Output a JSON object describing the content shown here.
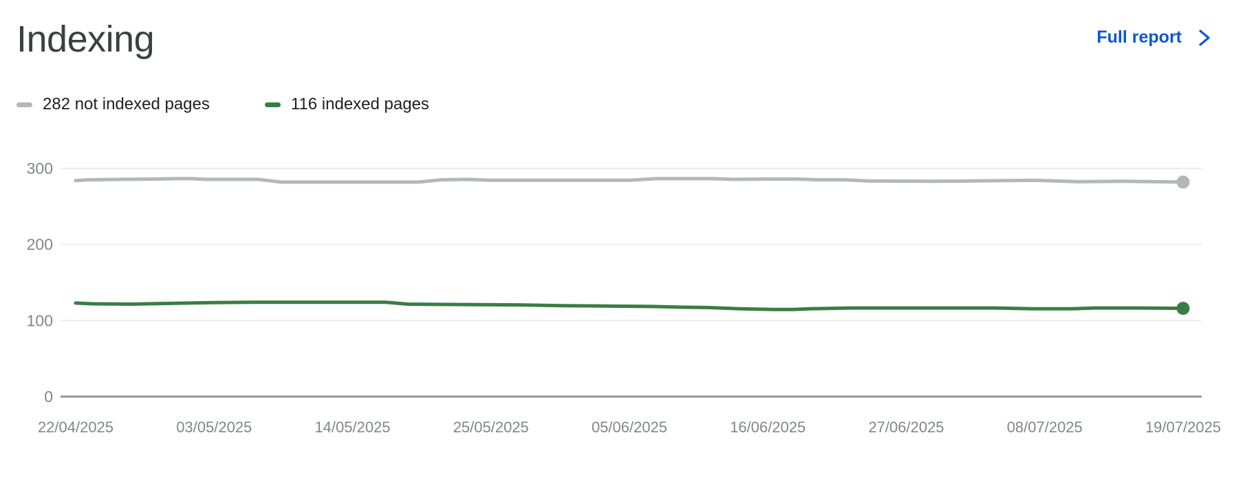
{
  "header": {
    "title": "Indexing",
    "full_report_label": "Full report"
  },
  "icons": {
    "chevron_right": "chevron-right"
  },
  "colors": {
    "accent_blue": "#0b57d0",
    "title_text": "#3c4043",
    "legend_text": "#202124",
    "axis_text": "#80868b",
    "gridline": "#ececec",
    "baseline": "#919396",
    "not_indexed_gray": "#b4b7ba",
    "indexed_green": "#3a7d44"
  },
  "chart_data": {
    "type": "line",
    "title": "Indexing",
    "xlabel": "",
    "ylabel": "",
    "ylim": [
      0,
      300
    ],
    "yticks": [
      0,
      100,
      200,
      300
    ],
    "grid": "horizontal-only",
    "legend_position": "top-left",
    "x_tick_labels": [
      "22/04/2025",
      "03/05/2025",
      "14/05/2025",
      "25/05/2025",
      "05/06/2025",
      "16/06/2025",
      "27/06/2025",
      "08/07/2025",
      "19/07/2025"
    ],
    "x_start_date": "22/04/2025",
    "x_end_date": "19/07/2025",
    "series": [
      {
        "name": "282 not indexed pages",
        "color": "#b4b7ba",
        "current_value": 282,
        "end_dot": true,
        "points": [
          [
            0.0,
            284.0
          ],
          [
            0.012,
            285.0
          ],
          [
            0.04,
            285.5
          ],
          [
            0.07,
            286.0
          ],
          [
            0.09,
            286.5
          ],
          [
            0.105,
            286.5
          ],
          [
            0.118,
            285.5
          ],
          [
            0.165,
            285.5
          ],
          [
            0.185,
            282.0
          ],
          [
            0.31,
            282.0
          ],
          [
            0.33,
            285.0
          ],
          [
            0.355,
            285.5
          ],
          [
            0.375,
            284.5
          ],
          [
            0.5,
            284.5
          ],
          [
            0.525,
            286.5
          ],
          [
            0.575,
            286.5
          ],
          [
            0.595,
            285.5
          ],
          [
            0.625,
            286.0
          ],
          [
            0.65,
            286.0
          ],
          [
            0.67,
            285.0
          ],
          [
            0.695,
            285.0
          ],
          [
            0.715,
            283.5
          ],
          [
            0.775,
            283.0
          ],
          [
            0.81,
            283.5
          ],
          [
            0.84,
            284.0
          ],
          [
            0.865,
            284.5
          ],
          [
            0.885,
            283.5
          ],
          [
            0.905,
            282.5
          ],
          [
            0.945,
            283.0
          ],
          [
            1.0,
            282.0
          ]
        ]
      },
      {
        "name": "116 indexed pages",
        "color": "#3a7d44",
        "current_value": 116,
        "end_dot": true,
        "points": [
          [
            0.0,
            123.0
          ],
          [
            0.015,
            122.0
          ],
          [
            0.05,
            121.5
          ],
          [
            0.085,
            122.5
          ],
          [
            0.125,
            123.5
          ],
          [
            0.16,
            124.0
          ],
          [
            0.28,
            124.0
          ],
          [
            0.3,
            121.5
          ],
          [
            0.35,
            121.0
          ],
          [
            0.4,
            120.5
          ],
          [
            0.44,
            119.5
          ],
          [
            0.48,
            119.0
          ],
          [
            0.52,
            118.5
          ],
          [
            0.55,
            117.5
          ],
          [
            0.572,
            117.0
          ],
          [
            0.6,
            115.5
          ],
          [
            0.63,
            114.5
          ],
          [
            0.648,
            114.5
          ],
          [
            0.663,
            115.5
          ],
          [
            0.7,
            116.5
          ],
          [
            0.83,
            116.5
          ],
          [
            0.865,
            115.5
          ],
          [
            0.9,
            115.5
          ],
          [
            0.92,
            116.5
          ],
          [
            0.96,
            116.5
          ],
          [
            1.0,
            116.0
          ]
        ]
      }
    ]
  }
}
